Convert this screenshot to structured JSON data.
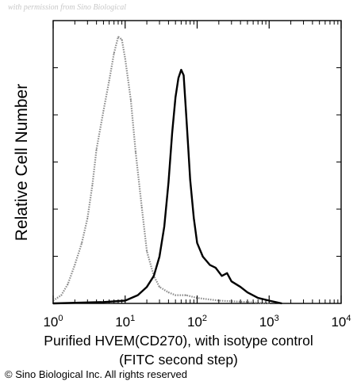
{
  "watermark": "with permission from Sino Biological",
  "chart_data": {
    "type": "area",
    "title": "",
    "xlabel_line1": "Purified HVEM(CD270), with isotype control",
    "xlabel_line2": "(FITC second step)",
    "ylabel": "Relative Cell Number",
    "x_scale": "log",
    "xlim": [
      1,
      10000
    ],
    "ylim": [
      0,
      100
    ],
    "x_ticks": [
      {
        "base": "10",
        "exp": "0"
      },
      {
        "base": "10",
        "exp": "1"
      },
      {
        "base": "10",
        "exp": "2"
      },
      {
        "base": "10",
        "exp": "3"
      },
      {
        "base": "10",
        "exp": "4"
      }
    ],
    "grid": false,
    "legend": "none",
    "series": [
      {
        "color": "#8a8a8a",
        "style": "dotted",
        "x": [
          1.0,
          1.3,
          1.6,
          2.0,
          2.5,
          3.0,
          3.5,
          4.0,
          5.0,
          6.0,
          7.0,
          8.0,
          9.0,
          10.0,
          12.0,
          14.0,
          17.0,
          20.0,
          25.0,
          30.0,
          40.0,
          50.0,
          70.0,
          100.0,
          200.0,
          500.0,
          1000.0
        ],
        "y": [
          1,
          3,
          7,
          14,
          22,
          31,
          43,
          56,
          70,
          81,
          91,
          97,
          96,
          89,
          74,
          55,
          35,
          19,
          10,
          6,
          4,
          3,
          3,
          2,
          1,
          0.5,
          0
        ]
      },
      {
        "color": "#000000",
        "style": "solid",
        "x": [
          1.0,
          5.0,
          10.0,
          15.0,
          20.0,
          25.0,
          30.0,
          35.0,
          40.0,
          45.0,
          50.0,
          55.0,
          60.0,
          65.0,
          70.0,
          75.0,
          80.0,
          90.0,
          100.0,
          120.0,
          150.0,
          180.0,
          220.0,
          260.0,
          300.0,
          400.0,
          500.0,
          700.0,
          1000.0,
          1500.0
        ],
        "y": [
          0,
          0.5,
          1,
          3,
          6,
          10,
          17,
          28,
          44,
          62,
          75,
          82,
          85,
          83,
          70,
          57,
          45,
          31,
          22,
          17,
          14,
          13,
          10,
          11,
          8,
          6,
          4,
          2,
          1,
          0
        ]
      }
    ]
  },
  "copyright": "© Sino Biological Inc. All rights reserved"
}
